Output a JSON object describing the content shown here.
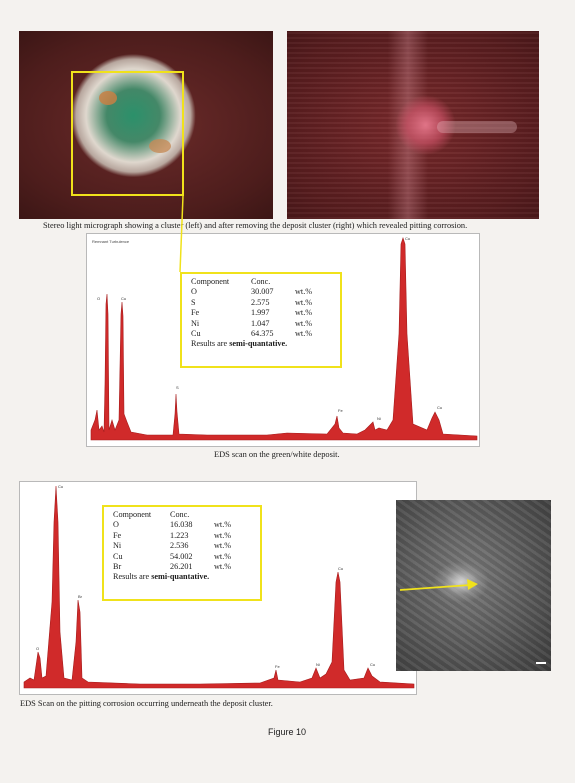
{
  "micrograph_caption": "Stereo light micrograph showing a cluster (left) and after removing the deposit cluster (right) which revealed pitting corrosion.",
  "spectrum1": {
    "chart_title": "Remnant Turbulence",
    "caption": "EDS scan on the green/white deposit.",
    "table": {
      "header": [
        "Component",
        "Conc."
      ],
      "rows": [
        {
          "name": "O",
          "value": "30.007",
          "unit": "wt.%"
        },
        {
          "name": "S",
          "value": "2.575",
          "unit": "wt.%"
        },
        {
          "name": "Fe",
          "value": "1.997",
          "unit": "wt.%"
        },
        {
          "name": "Ni",
          "value": "1.047",
          "unit": "wt.%"
        },
        {
          "name": "Cu",
          "value": "64.375",
          "unit": "wt.%"
        }
      ],
      "note_prefix": "Results are ",
      "note_bold": "semi-quantative."
    },
    "peak_labels": [
      "O",
      "Cu",
      "S",
      "Fe",
      "Ni",
      "Cu",
      "Cu"
    ]
  },
  "spectrum2": {
    "caption": "EDS Scan on the pitting corrosion occurring underneath the deposit cluster.",
    "table": {
      "header": [
        "Component",
        "Conc."
      ],
      "rows": [
        {
          "name": "O",
          "value": "16.038",
          "unit": "wt.%"
        },
        {
          "name": "Fe",
          "value": "1.223",
          "unit": "wt.%"
        },
        {
          "name": "Ni",
          "value": "2.536",
          "unit": "wt.%"
        },
        {
          "name": "Cu",
          "value": "54.002",
          "unit": "wt.%"
        },
        {
          "name": "Br",
          "value": "26.201",
          "unit": "wt.%"
        }
      ],
      "note_prefix": "Results are ",
      "note_bold": "semi-quantative."
    },
    "peak_labels": [
      "Cu",
      "O",
      "Br",
      "Fe",
      "Ni",
      "Cu",
      "Cu"
    ]
  },
  "figure_label": "Figure 10",
  "colors": {
    "spectrum_fill": "#d02a2a",
    "highlight_box": "#f0e21b",
    "pointer_line": "#f0e21b"
  }
}
